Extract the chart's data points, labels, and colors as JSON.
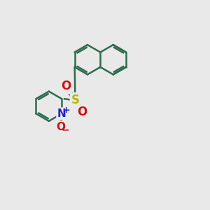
{
  "bg_color": "#e9e9e9",
  "bond_color": "#2e6b4f",
  "s_color": "#b8b800",
  "n_color": "#2020cc",
  "o_color": "#cc1010",
  "bond_width": 1.8,
  "figsize": [
    3.0,
    3.0
  ],
  "dpi": 100,
  "xlim": [
    0,
    10
  ],
  "ylim": [
    0,
    10
  ]
}
